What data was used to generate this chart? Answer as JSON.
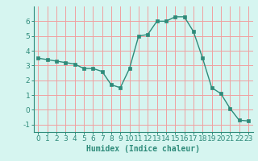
{
  "x": [
    0,
    1,
    2,
    3,
    4,
    5,
    6,
    7,
    8,
    9,
    10,
    11,
    12,
    13,
    14,
    15,
    16,
    17,
    18,
    19,
    20,
    21,
    22,
    23
  ],
  "y": [
    3.5,
    3.4,
    3.3,
    3.2,
    3.1,
    2.8,
    2.8,
    2.6,
    1.7,
    1.5,
    2.8,
    5.0,
    5.1,
    6.0,
    6.0,
    6.3,
    6.3,
    5.3,
    3.5,
    1.5,
    1.1,
    0.1,
    -0.7,
    -0.75
  ],
  "xlabel": "Humidex (Indice chaleur)",
  "ylim": [
    -1.5,
    7.0
  ],
  "xlim": [
    -0.5,
    23.5
  ],
  "line_color": "#2e8b7a",
  "marker_color": "#2e8b7a",
  "bg_color": "#d6f5f0",
  "grid_color": "#f0a0a0",
  "yticks": [
    -1,
    0,
    1,
    2,
    3,
    4,
    5,
    6
  ],
  "xticks": [
    0,
    1,
    2,
    3,
    4,
    5,
    6,
    7,
    8,
    9,
    10,
    11,
    12,
    13,
    14,
    15,
    16,
    17,
    18,
    19,
    20,
    21,
    22,
    23
  ],
  "xlabel_fontsize": 7,
  "tick_fontsize": 6.5
}
